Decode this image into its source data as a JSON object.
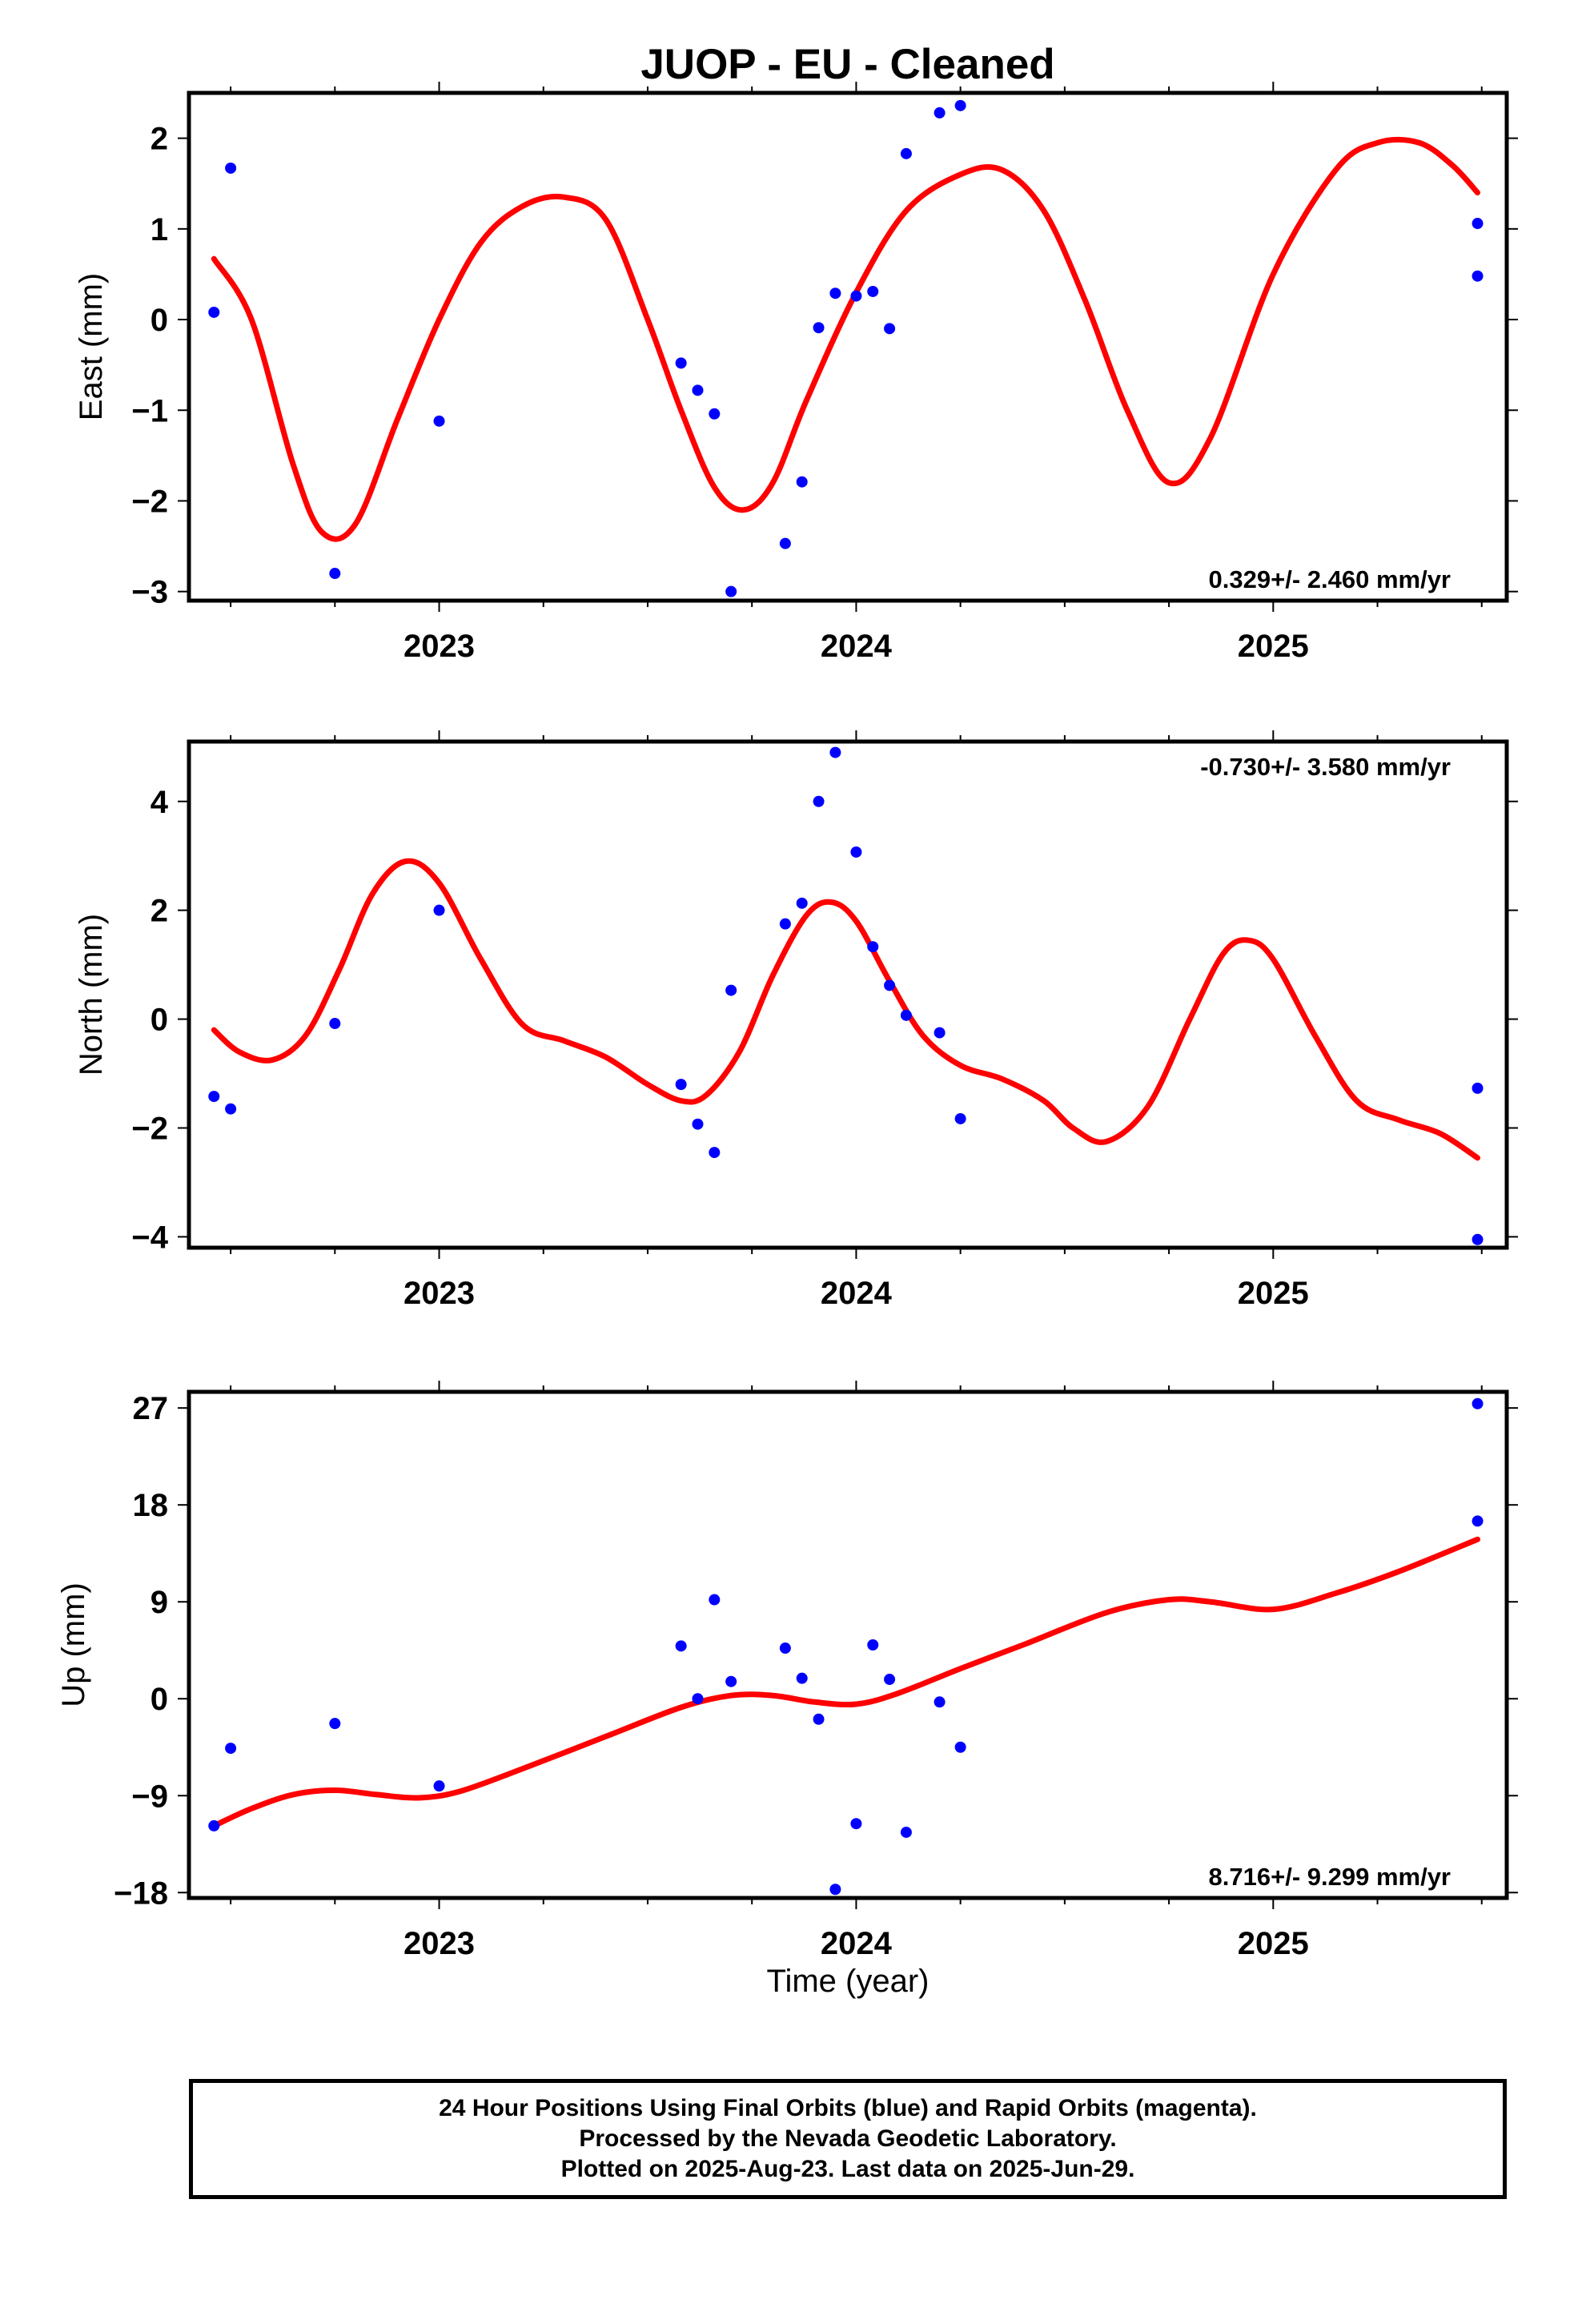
{
  "title": "JUOP  - EU - Cleaned",
  "xlabel": "Time (year)",
  "footer": {
    "line1": "24 Hour Positions Using Final Orbits (blue) and Rapid Orbits (magenta).",
    "line2": "Processed by the Nevada Geodetic Laboratory.",
    "line3": "Plotted on 2025-Aug-23. Last data on 2025-Jun-29."
  },
  "colors": {
    "points": "#0000ff",
    "fit": "#ff0000",
    "frame": "#000000"
  },
  "chart_data": [
    {
      "type": "scatter",
      "panel": "east",
      "ylabel": "East (mm)",
      "xlim": [
        2022.4,
        2025.56
      ],
      "ylim": [
        -3.1,
        2.5
      ],
      "xticks": [
        2023,
        2024,
        2025
      ],
      "yticks": [
        -3,
        -2,
        -1,
        0,
        1,
        2
      ],
      "ytick_labels": [
        "−3",
        "−2",
        "−1",
        "0",
        "1",
        "2"
      ],
      "rate_label": "0.329+/- 2.460 mm/yr",
      "rate_position": "bottom-right",
      "series": [
        {
          "kind": "points",
          "x": [
            2022.46,
            2022.5,
            2022.75,
            2023.0,
            2023.58,
            2023.62,
            2023.66,
            2023.7,
            2023.83,
            2023.87,
            2023.91,
            2023.95,
            2024.0,
            2024.04,
            2024.08,
            2024.12,
            2024.2,
            2024.25,
            2025.49,
            2025.49
          ],
          "y": [
            0.08,
            1.67,
            -2.8,
            -1.12,
            -0.48,
            -0.78,
            -1.04,
            -3.0,
            -2.47,
            -1.79,
            -0.09,
            0.29,
            0.26,
            0.31,
            -0.1,
            1.83,
            2.28,
            2.36,
            1.06,
            0.48
          ]
        },
        {
          "kind": "fit",
          "x": [
            2022.46,
            2022.55,
            2022.65,
            2022.72,
            2022.8,
            2022.9,
            2023.0,
            2023.1,
            2023.2,
            2023.3,
            2023.4,
            2023.5,
            2023.58,
            2023.66,
            2023.73,
            2023.8,
            2023.88,
            2024.0,
            2024.12,
            2024.25,
            2024.35,
            2024.45,
            2024.55,
            2024.65,
            2024.75,
            2024.85,
            2025.0,
            2025.15,
            2025.25,
            2025.35,
            2025.43,
            2025.49
          ],
          "y": [
            0.67,
            0.0,
            -1.6,
            -2.35,
            -2.25,
            -1.1,
            0.0,
            0.85,
            1.25,
            1.35,
            1.1,
            0.0,
            -1.0,
            -1.85,
            -2.1,
            -1.8,
            -0.9,
            0.3,
            1.2,
            1.6,
            1.65,
            1.2,
            0.2,
            -1.0,
            -1.8,
            -1.3,
            0.5,
            1.65,
            1.95,
            1.95,
            1.7,
            1.4
          ]
        }
      ]
    },
    {
      "type": "scatter",
      "panel": "north",
      "ylabel": "North (mm)",
      "xlim": [
        2022.4,
        2025.56
      ],
      "ylim": [
        -4.2,
        5.1
      ],
      "xticks": [
        2023,
        2024,
        2025
      ],
      "yticks": [
        -4,
        -2,
        0,
        2,
        4
      ],
      "ytick_labels": [
        "−4",
        "−2",
        "0",
        "2",
        "4"
      ],
      "rate_label": "-0.730+/- 3.580 mm/yr",
      "rate_position": "top-right",
      "series": [
        {
          "kind": "points",
          "x": [
            2022.46,
            2022.5,
            2022.75,
            2023.0,
            2023.58,
            2023.62,
            2023.66,
            2023.7,
            2023.83,
            2023.87,
            2023.91,
            2023.95,
            2024.0,
            2024.04,
            2024.08,
            2024.12,
            2024.2,
            2024.25,
            2025.49,
            2025.49
          ],
          "y": [
            -1.42,
            -1.65,
            -0.08,
            2.0,
            -1.2,
            -1.93,
            -2.45,
            0.53,
            1.75,
            2.13,
            4.0,
            4.9,
            3.07,
            1.33,
            0.62,
            0.07,
            -0.25,
            -1.83,
            -1.27,
            -4.05
          ]
        },
        {
          "kind": "fit",
          "x": [
            2022.46,
            2022.52,
            2022.6,
            2022.68,
            2022.76,
            2022.84,
            2022.92,
            2023.0,
            2023.1,
            2023.2,
            2023.3,
            2023.4,
            2023.5,
            2023.58,
            2023.64,
            2023.72,
            2023.8,
            2023.88,
            2023.94,
            2024.0,
            2024.08,
            2024.16,
            2024.25,
            2024.35,
            2024.45,
            2024.52,
            2024.6,
            2024.7,
            2024.8,
            2024.88,
            2024.94,
            2025.0,
            2025.1,
            2025.2,
            2025.3,
            2025.4,
            2025.49
          ],
          "y": [
            -0.2,
            -0.6,
            -0.75,
            -0.3,
            0.9,
            2.3,
            2.9,
            2.5,
            1.1,
            -0.1,
            -0.4,
            -0.7,
            -1.2,
            -1.5,
            -1.4,
            -0.6,
            0.8,
            1.9,
            2.15,
            1.8,
            0.7,
            -0.3,
            -0.85,
            -1.1,
            -1.5,
            -2.0,
            -2.25,
            -1.6,
            0.0,
            1.2,
            1.45,
            1.1,
            -0.3,
            -1.5,
            -1.85,
            -2.1,
            -2.55
          ]
        }
      ]
    },
    {
      "type": "scatter",
      "panel": "up",
      "ylabel": "Up (mm)",
      "xlim": [
        2022.4,
        2025.56
      ],
      "ylim": [
        -18.5,
        28.5
      ],
      "xticks": [
        2023,
        2024,
        2025
      ],
      "yticks": [
        -18,
        -9,
        0,
        9,
        18,
        27
      ],
      "ytick_labels": [
        "−18",
        "−9",
        "0",
        "9",
        "18",
        "27"
      ],
      "rate_label": "8.716+/- 9.299 mm/yr",
      "rate_position": "bottom-right",
      "series": [
        {
          "kind": "points",
          "x": [
            2022.46,
            2022.5,
            2022.75,
            2023.0,
            2023.58,
            2023.62,
            2023.66,
            2023.7,
            2023.83,
            2023.87,
            2023.91,
            2023.95,
            2024.0,
            2024.04,
            2024.08,
            2024.12,
            2024.2,
            2024.25,
            2025.49,
            2025.49
          ],
          "y": [
            -11.8,
            -4.6,
            -2.3,
            -8.1,
            4.9,
            0.0,
            9.2,
            1.6,
            4.7,
            1.9,
            -1.9,
            -17.7,
            -11.6,
            5.0,
            1.8,
            -12.4,
            -0.3,
            -4.5,
            27.4,
            16.5
          ]
        },
        {
          "kind": "fit",
          "x": [
            2022.46,
            2022.55,
            2022.65,
            2022.75,
            2022.85,
            2022.95,
            2023.05,
            2023.2,
            2023.4,
            2023.58,
            2023.7,
            2023.8,
            2023.9,
            2024.0,
            2024.1,
            2024.25,
            2024.4,
            2024.6,
            2024.75,
            2024.85,
            2025.0,
            2025.15,
            2025.3,
            2025.49
          ],
          "y": [
            -11.8,
            -10.2,
            -8.9,
            -8.5,
            -8.9,
            -9.2,
            -8.6,
            -6.5,
            -3.5,
            -0.8,
            0.3,
            0.3,
            -0.3,
            -0.5,
            0.5,
            2.8,
            5.0,
            8.0,
            9.2,
            9.0,
            8.3,
            9.8,
            11.8,
            14.8
          ]
        }
      ]
    }
  ]
}
